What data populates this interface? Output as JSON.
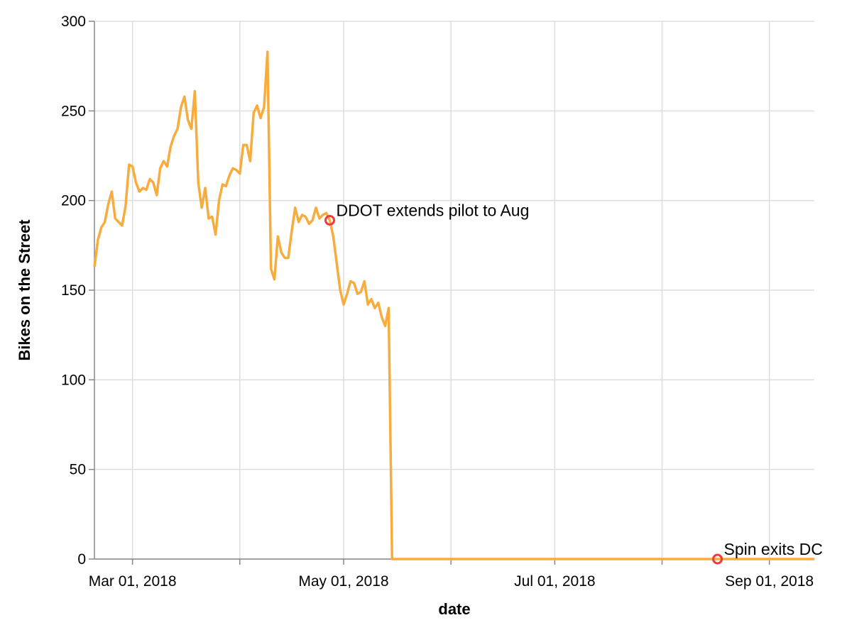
{
  "chart_data": {
    "type": "line",
    "x_label": "date",
    "y_label": "Bikes on the Street",
    "x": [
      "2018-02-18",
      "2018-02-19",
      "2018-02-20",
      "2018-02-21",
      "2018-02-22",
      "2018-02-23",
      "2018-02-24",
      "2018-02-25",
      "2018-02-26",
      "2018-02-27",
      "2018-02-28",
      "2018-03-01",
      "2018-03-02",
      "2018-03-03",
      "2018-03-04",
      "2018-03-05",
      "2018-03-06",
      "2018-03-07",
      "2018-03-08",
      "2018-03-09",
      "2018-03-10",
      "2018-03-11",
      "2018-03-12",
      "2018-03-13",
      "2018-03-14",
      "2018-03-15",
      "2018-03-16",
      "2018-03-17",
      "2018-03-18",
      "2018-03-19",
      "2018-03-20",
      "2018-03-21",
      "2018-03-22",
      "2018-03-23",
      "2018-03-24",
      "2018-03-25",
      "2018-03-26",
      "2018-03-27",
      "2018-03-28",
      "2018-03-29",
      "2018-03-30",
      "2018-03-31",
      "2018-04-01",
      "2018-04-02",
      "2018-04-03",
      "2018-04-04",
      "2018-04-05",
      "2018-04-06",
      "2018-04-07",
      "2018-04-08",
      "2018-04-09",
      "2018-04-10",
      "2018-04-11",
      "2018-04-12",
      "2018-04-13",
      "2018-04-14",
      "2018-04-15",
      "2018-04-16",
      "2018-04-17",
      "2018-04-18",
      "2018-04-19",
      "2018-04-20",
      "2018-04-21",
      "2018-04-22",
      "2018-04-23",
      "2018-04-24",
      "2018-04-25",
      "2018-04-26",
      "2018-04-27",
      "2018-04-28",
      "2018-04-29",
      "2018-04-30",
      "2018-05-01",
      "2018-05-02",
      "2018-05-03",
      "2018-05-04",
      "2018-05-05",
      "2018-05-06",
      "2018-05-07",
      "2018-05-08",
      "2018-05-09",
      "2018-05-10",
      "2018-05-11",
      "2018-05-12",
      "2018-05-13",
      "2018-05-14",
      "2018-05-15",
      "2018-09-14"
    ],
    "series": [
      {
        "color": "#f8ac3e",
        "values": [
          163,
          178,
          185,
          188,
          198,
          205,
          190,
          188,
          186,
          197,
          220,
          219,
          210,
          205,
          207,
          206,
          212,
          210,
          203,
          218,
          222,
          219,
          230,
          236,
          240,
          252,
          258,
          245,
          240,
          261,
          210,
          196,
          207,
          190,
          191,
          181,
          200,
          209,
          208,
          214,
          218,
          217,
          215,
          231,
          231,
          222,
          249,
          253,
          246,
          252,
          283,
          162,
          156,
          180,
          171,
          168,
          168,
          183,
          196,
          188,
          192,
          191,
          187,
          189,
          196,
          190,
          192,
          193,
          189,
          180,
          165,
          150,
          142,
          148,
          155,
          154,
          148,
          149,
          155,
          142,
          145,
          140,
          143,
          135,
          130,
          140,
          0,
          0
        ]
      }
    ],
    "annotations": [
      {
        "text": "DDOT extends pilot to Aug",
        "x": "2018-04-27",
        "y": 189,
        "color": "#f03b3b"
      },
      {
        "text": "Spin exits DC",
        "x": "2018-08-17",
        "y": 0,
        "color": "#f03b3b"
      }
    ],
    "xlim": [
      "2018-02-18",
      "2018-09-14"
    ],
    "xticks": [
      {
        "value": "2018-03-01",
        "label": "Mar 01, 2018"
      },
      {
        "value": "2018-04-01",
        "label": null
      },
      {
        "value": "2018-05-01",
        "label": "May 01, 2018"
      },
      {
        "value": "2018-06-01",
        "label": null
      },
      {
        "value": "2018-07-01",
        "label": "Jul 01, 2018"
      },
      {
        "value": "2018-08-01",
        "label": null
      },
      {
        "value": "2018-09-01",
        "label": "Sep 01, 2018"
      }
    ],
    "ylim": [
      0,
      300
    ],
    "yticks": [
      0,
      50,
      100,
      150,
      200,
      250,
      300
    ],
    "grid": true
  }
}
